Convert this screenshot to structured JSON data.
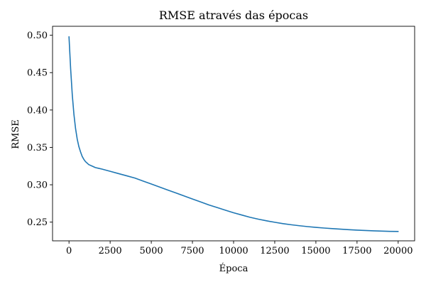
{
  "chart_data": {
    "type": "line",
    "title": "RMSE através das épocas",
    "xlabel": "Época",
    "ylabel": "RMSE",
    "xlim": [
      -1000,
      21000
    ],
    "ylim": [
      0.225,
      0.512
    ],
    "xticks": [
      0,
      2500,
      5000,
      7500,
      10000,
      12500,
      15000,
      17500,
      20000
    ],
    "yticks": [
      0.25,
      0.3,
      0.35,
      0.4,
      0.45,
      0.5
    ],
    "ytick_labels": [
      "0.25",
      "0.30",
      "0.35",
      "0.40",
      "0.45",
      "0.50"
    ],
    "grid": false,
    "series": [
      {
        "color": "#1f77b4",
        "x": [
          0,
          100,
          200,
          300,
          400,
          500,
          600,
          700,
          800,
          900,
          1000,
          1200,
          1400,
          1600,
          1800,
          2000,
          2500,
          3000,
          3500,
          4000,
          4500,
          5000,
          5500,
          6000,
          6500,
          7000,
          7500,
          8000,
          8500,
          9000,
          9500,
          10000,
          10500,
          11000,
          11500,
          12000,
          12500,
          13000,
          13500,
          14000,
          14500,
          15000,
          15500,
          16000,
          16500,
          17000,
          17500,
          18000,
          18500,
          19000,
          19500,
          20000
        ],
        "values": [
          0.498,
          0.455,
          0.42,
          0.394,
          0.375,
          0.361,
          0.351,
          0.344,
          0.338,
          0.334,
          0.331,
          0.327,
          0.325,
          0.323,
          0.322,
          0.321,
          0.318,
          0.315,
          0.312,
          0.309,
          0.305,
          0.301,
          0.297,
          0.293,
          0.289,
          0.285,
          0.281,
          0.277,
          0.273,
          0.2695,
          0.266,
          0.2625,
          0.2595,
          0.2565,
          0.254,
          0.2518,
          0.2498,
          0.248,
          0.2465,
          0.2452,
          0.244,
          0.243,
          0.2421,
          0.2413,
          0.2406,
          0.2399,
          0.2393,
          0.2388,
          0.2384,
          0.238,
          0.2377,
          0.2375
        ]
      }
    ]
  }
}
